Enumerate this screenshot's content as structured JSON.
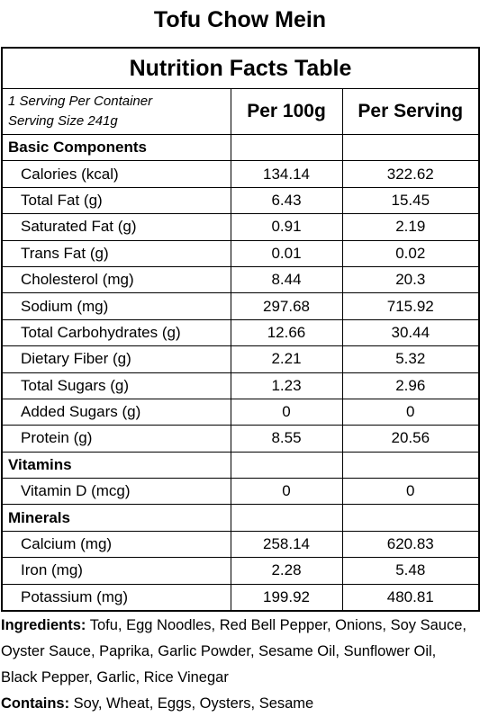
{
  "title": "Tofu Chow Mein",
  "table": {
    "caption": "Nutrition Facts Table",
    "servings_line": "1 Serving Per Container",
    "serving_size_line": "Serving Size 241g",
    "col_per100": "Per 100g",
    "col_perserving": "Per Serving",
    "sections": [
      {
        "name": "Basic Components",
        "rows": [
          {
            "label": "Calories (kcal)",
            "per100": "134.14",
            "per_serving": "322.62"
          },
          {
            "label": "Total Fat (g)",
            "per100": "6.43",
            "per_serving": "15.45"
          },
          {
            "label": "Saturated Fat (g)",
            "per100": "0.91",
            "per_serving": "2.19"
          },
          {
            "label": "Trans Fat (g)",
            "per100": "0.01",
            "per_serving": "0.02"
          },
          {
            "label": "Cholesterol (mg)",
            "per100": "8.44",
            "per_serving": "20.3"
          },
          {
            "label": "Sodium (mg)",
            "per100": "297.68",
            "per_serving": "715.92"
          },
          {
            "label": "Total Carbohydrates (g)",
            "per100": "12.66",
            "per_serving": "30.44"
          },
          {
            "label": "Dietary Fiber (g)",
            "per100": "2.21",
            "per_serving": "5.32"
          },
          {
            "label": "Total Sugars (g)",
            "per100": "1.23",
            "per_serving": "2.96"
          },
          {
            "label": "Added Sugars (g)",
            "per100": "0",
            "per_serving": "0"
          },
          {
            "label": "Protein (g)",
            "per100": "8.55",
            "per_serving": "20.56"
          }
        ]
      },
      {
        "name": "Vitamins",
        "rows": [
          {
            "label": "Vitamin D (mcg)",
            "per100": "0",
            "per_serving": "0"
          }
        ]
      },
      {
        "name": "Minerals",
        "rows": [
          {
            "label": "Calcium (mg)",
            "per100": "258.14",
            "per_serving": "620.83"
          },
          {
            "label": "Iron (mg)",
            "per100": "2.28",
            "per_serving": "5.48"
          },
          {
            "label": "Potassium (mg)",
            "per100": "199.92",
            "per_serving": "480.81"
          }
        ]
      }
    ]
  },
  "ingredients": {
    "label": "Ingredients:",
    "text": " Tofu, Egg Noodles, Red Bell Pepper, Onions, Soy Sauce, Oyster Sauce, Paprika, Garlic Powder, Sesame Oil, Sunflower Oil, Black Pepper, Garlic, Rice Vinegar"
  },
  "contains": {
    "label": "Contains:",
    "text": " Soy, Wheat, Eggs, Oysters, Sesame"
  }
}
